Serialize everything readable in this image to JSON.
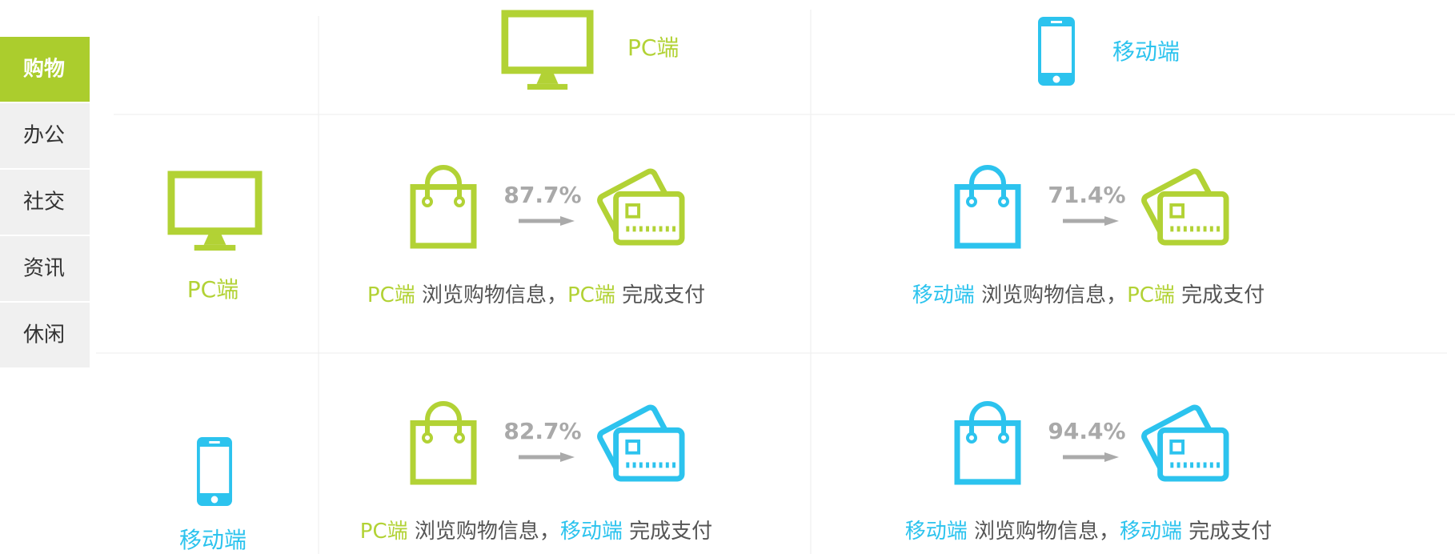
{
  "tabs": [
    "购物",
    "办公",
    "社交",
    "资讯",
    "休闲"
  ],
  "active_tab": 0,
  "columns": [
    {
      "label": "PC端",
      "color": "#b2d235"
    },
    {
      "label": "移动端",
      "color": "#2cc3ee"
    }
  ],
  "rows": [
    {
      "label": "PC端",
      "color": "#b2d235"
    },
    {
      "label": "移动端",
      "color": "#2cc3ee"
    }
  ],
  "cells": [
    [
      {
        "percent": "87.7%",
        "browse_device": "PC端",
        "browse_text": " 浏览购物信息，",
        "pay_device": "PC端",
        "pay_text": " 完成支付"
      },
      {
        "percent": "71.4%",
        "browse_device": "移动端",
        "browse_text": " 浏览购物信息，",
        "pay_device": "PC端",
        "pay_text": " 完成支付"
      }
    ],
    [
      {
        "percent": "82.7%",
        "browse_device": "PC端",
        "browse_text": " 浏览购物信息，",
        "pay_device": "移动端",
        "pay_text": " 完成支付"
      },
      {
        "percent": "94.4%",
        "browse_device": "移动端",
        "browse_text": " 浏览购物信息，",
        "pay_device": "移动端",
        "pay_text": " 完成支付"
      }
    ]
  ]
}
